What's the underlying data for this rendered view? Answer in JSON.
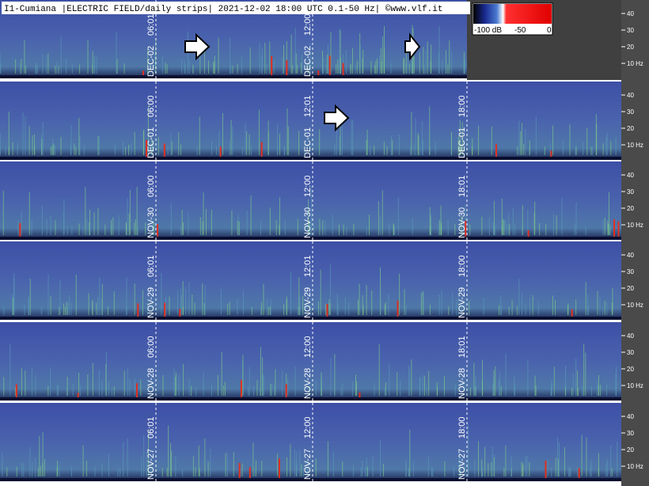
{
  "header": {
    "title": "I1-Cumiana |ELECTRIC FIELD/daily strips| 2021-12-02 18:00 UTC 0.1-50 Hz| ©www.vlf.it"
  },
  "colorbar": {
    "labels": [
      "-100 dB",
      "-50",
      "0"
    ]
  },
  "frequency_ticks": [
    "40",
    "30",
    "20",
    "10 Hz"
  ],
  "strips": [
    {
      "date": "DEC-02",
      "times": [
        "06:01",
        "12:00"
      ]
    },
    {
      "date": "DEC-01",
      "times": [
        "06:00",
        "12:01",
        "18:00"
      ]
    },
    {
      "date": "NOV-30",
      "times": [
        "06:00",
        "12:00",
        "18:01"
      ]
    },
    {
      "date": "NOV-29",
      "times": [
        "06:01",
        "12:01",
        "18:00"
      ]
    },
    {
      "date": "NOV-28",
      "times": [
        "06:00",
        "12:00",
        "18:01"
      ]
    },
    {
      "date": "NOV-27",
      "times": [
        "06:01",
        "12:00",
        "18:00"
      ]
    }
  ]
}
